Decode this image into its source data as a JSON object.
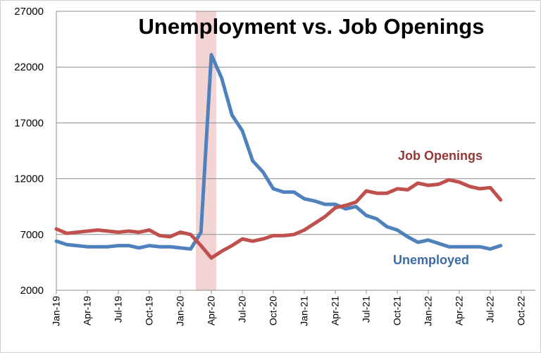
{
  "chart_data": {
    "type": "line",
    "title": "Unemployment vs. Job Openings",
    "categories": [
      "Jan-19",
      null,
      null,
      "Apr-19",
      null,
      null,
      "Jul-19",
      null,
      null,
      "Oct-19",
      null,
      null,
      "Jan-20",
      null,
      null,
      "Apr-20",
      null,
      null,
      "Jul-20",
      null,
      null,
      "Oct-20",
      null,
      null,
      "Jan-21",
      null,
      null,
      "Apr-21",
      null,
      null,
      "Jul-21",
      null,
      null,
      "Oct-21",
      null,
      null,
      "Jan-22",
      null,
      null,
      "Apr-22",
      null,
      null,
      "Jul-22",
      null,
      null,
      "Oct-22"
    ],
    "series": [
      {
        "name": "Unemployed",
        "color": "#4f81bd",
        "label_color": "#3b6aa6",
        "values": [
          6400,
          6100,
          6000,
          5900,
          5900,
          5900,
          6000,
          6000,
          5800,
          6000,
          5900,
          5900,
          5800,
          5700,
          7200,
          23100,
          21000,
          17700,
          16300,
          13600,
          12600,
          11100,
          10800,
          10800,
          10200,
          10000,
          9700,
          9700,
          9300,
          9500,
          8700,
          8400,
          7700,
          7400,
          6800,
          6300,
          6500,
          6200,
          5900,
          5900,
          5900,
          5900,
          5700,
          6000,
          null,
          null
        ]
      },
      {
        "name": "Job Openings",
        "color": "#c0504d",
        "label_color": "#953735",
        "values": [
          7500,
          7100,
          7200,
          7300,
          7400,
          7300,
          7200,
          7300,
          7200,
          7400,
          6900,
          6800,
          7200,
          7000,
          6000,
          4900,
          5500,
          6000,
          6600,
          6400,
          6600,
          6900,
          6900,
          7000,
          7400,
          8000,
          8600,
          9400,
          9600,
          9900,
          10900,
          10700,
          10700,
          11100,
          11000,
          11600,
          11400,
          11500,
          11900,
          11700,
          11300,
          11100,
          11200,
          10100,
          null,
          null
        ]
      }
    ],
    "ylim": [
      2000,
      27000
    ],
    "yticks": [
      2000,
      7000,
      12000,
      17000,
      22000,
      27000
    ],
    "grid": true
  }
}
